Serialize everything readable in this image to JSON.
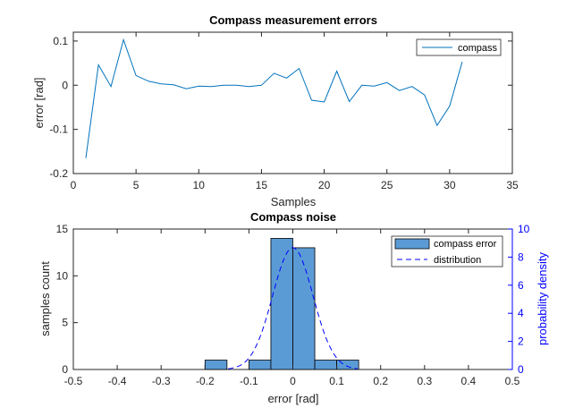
{
  "chart_data": [
    {
      "type": "line",
      "title": "Compass measurement errors",
      "xlabel": "Samples",
      "ylabel": "error [rad]",
      "xlim": [
        0,
        35
      ],
      "ylim": [
        -0.2,
        0.12
      ],
      "xticks": [
        0,
        5,
        10,
        15,
        20,
        25,
        30,
        35
      ],
      "yticks": [
        -0.2,
        -0.1,
        0,
        0.1
      ],
      "xtick_labels": [
        "0",
        "5",
        "10",
        "15",
        "20",
        "25",
        "30",
        "35"
      ],
      "ytick_labels": [
        "-0.2",
        "-0.1",
        "0",
        "0.1"
      ],
      "legend_position": "top-right",
      "color": "#0072bd",
      "series": [
        {
          "name": "compass",
          "x": [
            1,
            2,
            3,
            4,
            5,
            6,
            7,
            8,
            9,
            10,
            11,
            12,
            13,
            14,
            15,
            16,
            17,
            18,
            19,
            20,
            21,
            22,
            23,
            24,
            25,
            26,
            27,
            28,
            29,
            30,
            31
          ],
          "y": [
            -0.165,
            0.046,
            -0.003,
            0.103,
            0.022,
            0.009,
            0.003,
            0.001,
            -0.008,
            -0.002,
            -0.003,
            0.0,
            0.0,
            -0.003,
            0.0,
            0.027,
            0.016,
            0.038,
            -0.034,
            -0.038,
            0.032,
            -0.037,
            0.0,
            -0.002,
            0.006,
            -0.012,
            -0.003,
            -0.022,
            -0.091,
            -0.047,
            0.053
          ]
        }
      ]
    },
    {
      "type": "bar",
      "title": "Compass noise",
      "xlabel": "error [rad]",
      "ylabel": "samples count",
      "ylabel_right": "probability density",
      "xlim": [
        -0.5,
        0.5
      ],
      "ylim": [
        0,
        15
      ],
      "ylim_right": [
        0,
        10
      ],
      "xticks": [
        -0.5,
        -0.4,
        -0.3,
        -0.2,
        -0.1,
        0,
        0.1,
        0.2,
        0.3,
        0.4,
        0.5
      ],
      "xtick_labels": [
        "-0.5",
        "-0.4",
        "-0.3",
        "-0.2",
        "-0.1",
        "0",
        "0.1",
        "0.2",
        "0.3",
        "0.4",
        "0.5"
      ],
      "yticks": [
        0,
        5,
        10,
        15
      ],
      "ytick_labels": [
        "0",
        "5",
        "10",
        "15"
      ],
      "yticks_right": [
        0,
        2,
        4,
        6,
        8,
        10
      ],
      "ytick_labels_right": [
        "0",
        "2",
        "4",
        "6",
        "8",
        "10"
      ],
      "legend_position": "top-right",
      "histogram": {
        "name": "compass error",
        "color": "#5b9bd5",
        "bin_edges": [
          -0.2,
          -0.15,
          -0.1,
          -0.05,
          0,
          0.05,
          0.1,
          0.15
        ],
        "counts": [
          1,
          0,
          1,
          14,
          13,
          1,
          1
        ]
      },
      "distribution": {
        "name": "distribution",
        "color": "#0000ff",
        "mean": 0.0,
        "sd": 0.046
      }
    }
  ]
}
